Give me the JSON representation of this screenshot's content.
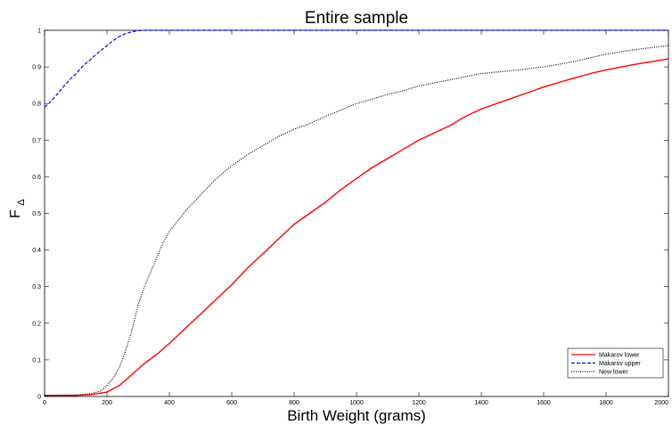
{
  "chart_data": {
    "type": "line",
    "title": "Entire sample",
    "xlabel": "Birth Weight (grams)",
    "ylabel_main": "F",
    "ylabel_sub": "Δ",
    "xlim": [
      0,
      2000
    ],
    "ylim": [
      0,
      1
    ],
    "x_ticks": [
      "0",
      "200",
      "400",
      "600",
      "800",
      "1000",
      "1200",
      "1400",
      "1600",
      "1800",
      "2000"
    ],
    "y_ticks": [
      "0",
      "0.1",
      "0.2",
      "0.3",
      "0.4",
      "0.5",
      "0.6",
      "0.7",
      "0.8",
      "0.9",
      "1"
    ],
    "grid": false,
    "legend_position": "bottom-right",
    "series": [
      {
        "name": "Makarov lower",
        "color": "#ff0000",
        "style": "solid",
        "points": [
          [
            0,
            0.003
          ],
          [
            100,
            0.003
          ],
          [
            150,
            0.005
          ],
          [
            200,
            0.012
          ],
          [
            240,
            0.03
          ],
          [
            280,
            0.06
          ],
          [
            320,
            0.09
          ],
          [
            360,
            0.115
          ],
          [
            400,
            0.145
          ],
          [
            450,
            0.185
          ],
          [
            500,
            0.225
          ],
          [
            550,
            0.265
          ],
          [
            600,
            0.305
          ],
          [
            650,
            0.35
          ],
          [
            700,
            0.39
          ],
          [
            750,
            0.43
          ],
          [
            800,
            0.47
          ],
          [
            850,
            0.5
          ],
          [
            900,
            0.53
          ],
          [
            950,
            0.565
          ],
          [
            1000,
            0.595
          ],
          [
            1050,
            0.625
          ],
          [
            1100,
            0.65
          ],
          [
            1150,
            0.675
          ],
          [
            1200,
            0.7
          ],
          [
            1250,
            0.72
          ],
          [
            1300,
            0.74
          ],
          [
            1350,
            0.765
          ],
          [
            1400,
            0.785
          ],
          [
            1450,
            0.8
          ],
          [
            1500,
            0.815
          ],
          [
            1550,
            0.83
          ],
          [
            1600,
            0.845
          ],
          [
            1650,
            0.858
          ],
          [
            1700,
            0.87
          ],
          [
            1750,
            0.882
          ],
          [
            1800,
            0.892
          ],
          [
            1850,
            0.9
          ],
          [
            1900,
            0.908
          ],
          [
            1950,
            0.915
          ],
          [
            2000,
            0.922
          ]
        ]
      },
      {
        "name": "Makarov upper",
        "color": "#0000ff",
        "style": "dashed",
        "points": [
          [
            0,
            0.79
          ],
          [
            20,
            0.805
          ],
          [
            40,
            0.825
          ],
          [
            60,
            0.845
          ],
          [
            80,
            0.865
          ],
          [
            100,
            0.88
          ],
          [
            120,
            0.9
          ],
          [
            140,
            0.915
          ],
          [
            160,
            0.93
          ],
          [
            180,
            0.945
          ],
          [
            200,
            0.958
          ],
          [
            220,
            0.972
          ],
          [
            240,
            0.983
          ],
          [
            260,
            0.991
          ],
          [
            280,
            0.996
          ],
          [
            300,
            0.999
          ],
          [
            320,
            1.0
          ],
          [
            2000,
            1.0
          ]
        ]
      },
      {
        "name": "New lower",
        "color": "#000000",
        "style": "dotted",
        "points": [
          [
            0,
            0.003
          ],
          [
            100,
            0.004
          ],
          [
            150,
            0.008
          ],
          [
            180,
            0.015
          ],
          [
            200,
            0.03
          ],
          [
            220,
            0.05
          ],
          [
            240,
            0.08
          ],
          [
            260,
            0.125
          ],
          [
            280,
            0.18
          ],
          [
            300,
            0.25
          ],
          [
            320,
            0.3
          ],
          [
            340,
            0.34
          ],
          [
            360,
            0.38
          ],
          [
            380,
            0.42
          ],
          [
            400,
            0.45
          ],
          [
            450,
            0.505
          ],
          [
            500,
            0.55
          ],
          [
            550,
            0.595
          ],
          [
            600,
            0.63
          ],
          [
            650,
            0.66
          ],
          [
            700,
            0.685
          ],
          [
            750,
            0.71
          ],
          [
            800,
            0.73
          ],
          [
            850,
            0.745
          ],
          [
            900,
            0.765
          ],
          [
            950,
            0.782
          ],
          [
            1000,
            0.8
          ],
          [
            1050,
            0.812
          ],
          [
            1100,
            0.825
          ],
          [
            1150,
            0.835
          ],
          [
            1200,
            0.848
          ],
          [
            1300,
            0.865
          ],
          [
            1400,
            0.882
          ],
          [
            1500,
            0.89
          ],
          [
            1600,
            0.9
          ],
          [
            1700,
            0.915
          ],
          [
            1800,
            0.935
          ],
          [
            1900,
            0.948
          ],
          [
            2000,
            0.958
          ]
        ]
      }
    ]
  }
}
